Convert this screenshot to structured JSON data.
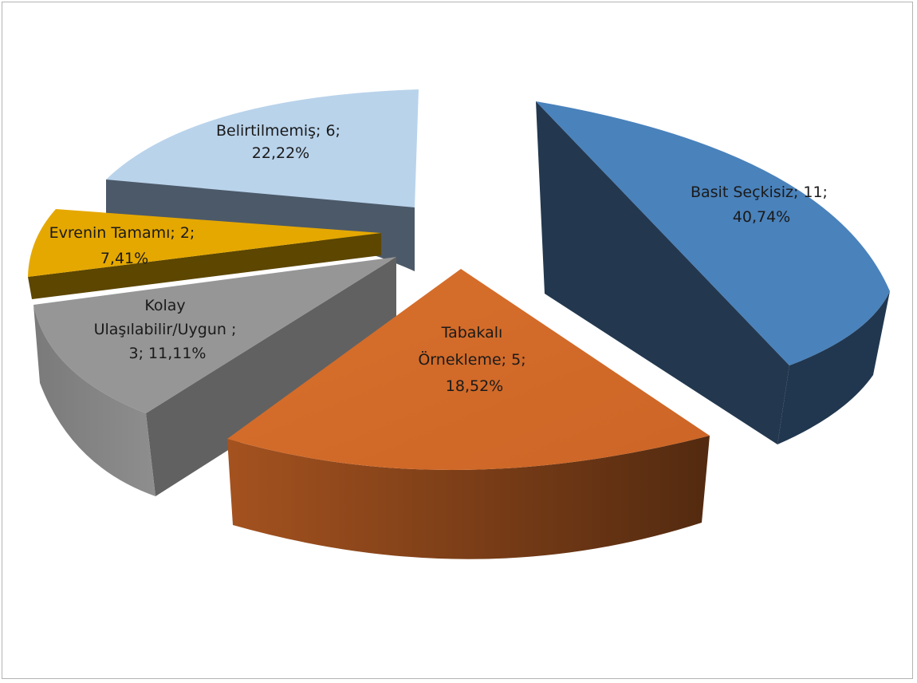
{
  "chart_data": {
    "type": "pie",
    "style": "exploded-3d",
    "slices": [
      {
        "name": "Basit Seçkisiz",
        "value": 11,
        "percent": "40,74%",
        "color": "#4F81BD",
        "label_lines": [
          "Basit Seçkisiz; 11;",
          "40,74%"
        ]
      },
      {
        "name": "Tabakalı Örnekleme",
        "value": 5,
        "percent": "18,52%",
        "color": "#D46B2A",
        "label_lines": [
          "Tabakalı",
          "Örnekleme; 5;",
          "18,52%"
        ]
      },
      {
        "name": "Kolay Ulaşılabilir/Uygun",
        "value": 3,
        "percent": "11,11%",
        "color": "#969696",
        "label_lines": [
          "Kolay",
          "Ulaşılabilir/Uygun ;",
          "3; 11,11%"
        ]
      },
      {
        "name": "Evrenin Tamamı",
        "value": 2,
        "percent": "7,41%",
        "color": "#E5A800",
        "label_lines": [
          "Evrenin Tamamı; 2;",
          "7,41%"
        ]
      },
      {
        "name": "Belirtilmemiş",
        "value": 6,
        "percent": "22,22%",
        "color": "#B9D3EB",
        "label_lines": [
          "Belirtilmemiş; 6;",
          "22,22%"
        ]
      }
    ],
    "legend": "none"
  }
}
